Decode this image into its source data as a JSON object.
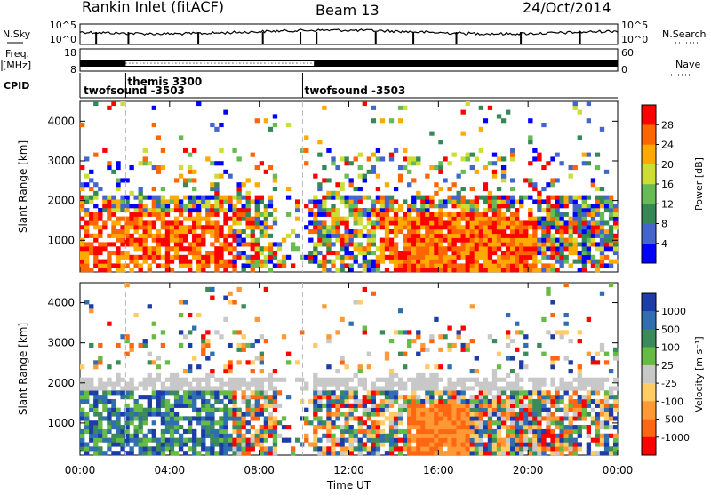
{
  "header": {
    "radar": "Rankin Inlet (fitACF)",
    "beam": "Beam 13",
    "date": "24/Oct/2014"
  },
  "side_labels": {
    "nsky": "N.Sky",
    "freq": "Freq.",
    "freq_unit": "[MHz]",
    "cpid": "CPID",
    "nsearch": "N.Search",
    "nave": "Nave"
  },
  "cpid_labels": [
    "twofsound -3503",
    "themis 3300",
    "twofsound -3503"
  ],
  "chart_data": [
    {
      "type": "line",
      "name": "noise",
      "left_ticks": [
        "10^5",
        "10^0"
      ],
      "right_ticks": [
        "10^5",
        "10^0"
      ]
    },
    {
      "type": "line",
      "name": "frequency",
      "left_ticks": [
        "18",
        "8"
      ],
      "right_ticks": [
        "60",
        "0"
      ]
    },
    {
      "type": "heatmap",
      "name": "power",
      "xlabel": "",
      "ylabel": "Slant Range [km]",
      "x_ticks": [
        "00:00",
        "04:00",
        "08:00",
        "12:00",
        "16:00",
        "20:00",
        "00:00"
      ],
      "y_ticks": [
        1000,
        2000,
        3000,
        4000
      ],
      "ylim": [
        200,
        4500
      ],
      "colorbar": {
        "label": "Power [dB]",
        "ticks": [
          "4",
          "8",
          "12",
          "16",
          "20",
          "24",
          "28"
        ],
        "colors": [
          "#0000ff",
          "#4466cc",
          "#338855",
          "#66bb55",
          "#ccdd33",
          "#ffaa00",
          "#ff6600",
          "#ff0000"
        ]
      }
    },
    {
      "type": "heatmap",
      "name": "velocity",
      "xlabel": "Time UT",
      "ylabel": "Slant Range [km]",
      "x_ticks": [
        "00:00",
        "04:00",
        "08:00",
        "12:00",
        "16:00",
        "20:00",
        "00:00"
      ],
      "y_ticks": [
        1000,
        2000,
        3000,
        4000
      ],
      "ylim": [
        200,
        4500
      ],
      "colorbar": {
        "label": "Velocity [m s⁻¹]",
        "ticks": [
          "1000",
          "500",
          "100",
          "25",
          "-25",
          "-100",
          "-500",
          "-1000"
        ],
        "colors": [
          "#1c3ca8",
          "#2f6fb0",
          "#3a8a5a",
          "#66bb44",
          "#c8c8c8",
          "#ffcc66",
          "#ff9933",
          "#ff6611",
          "#ff0000"
        ]
      }
    }
  ]
}
